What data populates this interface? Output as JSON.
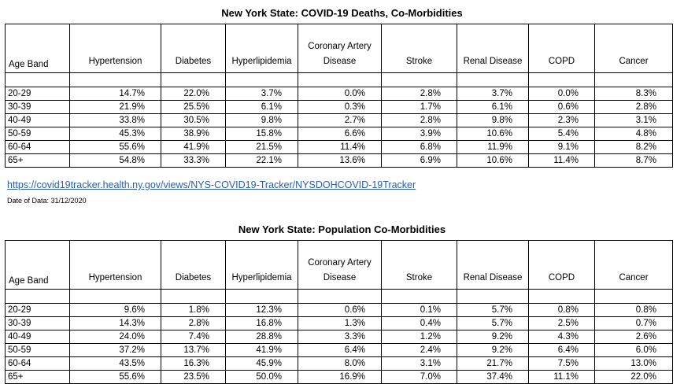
{
  "table1": {
    "title": "New York State: COVID-19 Deaths, Co-Morbidities",
    "headers": [
      "Age Band",
      "Hypertension",
      "Diabetes",
      "Hyperlipidemia",
      "Coronary Artery\nDisease",
      "Stroke",
      "Renal Disease",
      "COPD",
      "Cancer"
    ],
    "rows": [
      [
        "20-29",
        "14.7%",
        "22.0%",
        "3.7%",
        "0.0%",
        "2.8%",
        "3.7%",
        "0.0%",
        "8.3%"
      ],
      [
        "30-39",
        "21.9%",
        "25.5%",
        "6.1%",
        "0.3%",
        "1.7%",
        "6.1%",
        "0.6%",
        "2.8%"
      ],
      [
        "40-49",
        "33.8%",
        "30.5%",
        "9.8%",
        "2.7%",
        "2.8%",
        "9.8%",
        "2.3%",
        "3.1%"
      ],
      [
        "50-59",
        "45.3%",
        "38.9%",
        "15.8%",
        "6.6%",
        "3.9%",
        "10.6%",
        "5.4%",
        "4.8%"
      ],
      [
        "60-64",
        "55.6%",
        "41.9%",
        "21.5%",
        "11.4%",
        "6.8%",
        "11.9%",
        "9.1%",
        "8.2%"
      ],
      [
        "65+",
        "54.8%",
        "33.3%",
        "22.1%",
        "13.6%",
        "6.9%",
        "10.6%",
        "11.4%",
        "8.7%"
      ]
    ]
  },
  "source_link": "https://covid19tracker.health.ny.gov/views/NYS-COVID19-Tracker/NYSDOHCOVID-19Tracker",
  "date_note": "Date of Data: 31/12/2020",
  "table2": {
    "title": "New York State: Population Co-Morbidities",
    "headers": [
      "Age Band",
      "Hypertension",
      "Diabetes",
      "Hyperlipidemia",
      "Coronary Artery\nDisease",
      "Stroke",
      "Renal Disease",
      "COPD",
      "Cancer"
    ],
    "rows": [
      [
        "20-29",
        "9.6%",
        "1.8%",
        "12.3%",
        "0.6%",
        "0.1%",
        "5.7%",
        "0.8%",
        "0.8%"
      ],
      [
        "30-39",
        "14.3%",
        "2.8%",
        "16.8%",
        "1.3%",
        "0.4%",
        "5.7%",
        "2.5%",
        "0.7%"
      ],
      [
        "40-49",
        "24.0%",
        "7.4%",
        "28.8%",
        "3.3%",
        "1.2%",
        "9.2%",
        "4.3%",
        "2.6%"
      ],
      [
        "50-59",
        "37.2%",
        "13.7%",
        "41.9%",
        "6.4%",
        "2.4%",
        "9.2%",
        "6.4%",
        "6.0%"
      ],
      [
        "60-64",
        "43.5%",
        "16.3%",
        "45.9%",
        "8.0%",
        "3.1%",
        "21.7%",
        "7.5%",
        "13.0%"
      ],
      [
        "65+",
        "55.6%",
        "23.5%",
        "50.0%",
        "16.9%",
        "7.0%",
        "37.4%",
        "11.1%",
        "22.0%"
      ]
    ]
  }
}
